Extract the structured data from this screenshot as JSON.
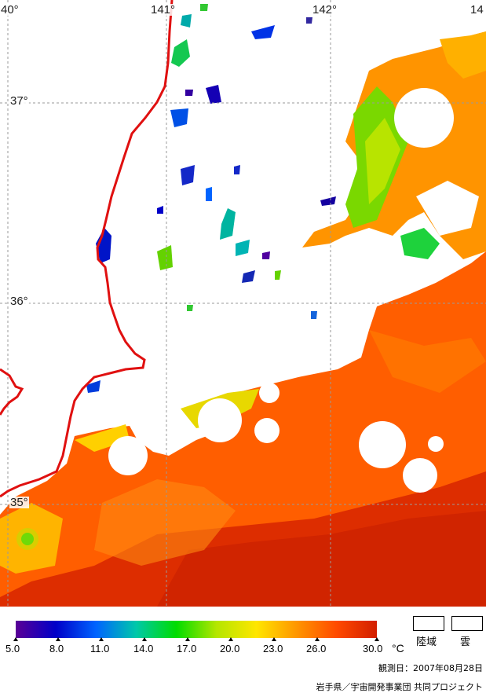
{
  "map": {
    "lon_labels": [
      "40°",
      "141°",
      "142°",
      "14"
    ],
    "lat_labels": [
      "37°",
      "36°",
      "35°"
    ]
  },
  "colorbar": {
    "ticks": [
      "5.0",
      "8.0",
      "11.0",
      "14.0",
      "17.0",
      "20.0",
      "23.0",
      "26.0",
      "30.0"
    ],
    "unit": "°C",
    "colors": [
      "#5a0096",
      "#0000c8",
      "#0064ff",
      "#00c8aa",
      "#00dc00",
      "#b4e600",
      "#ffe600",
      "#ff9600",
      "#ff4a00",
      "#d21e00"
    ]
  },
  "legend": {
    "land": "陸域",
    "cloud": "雲"
  },
  "observation_date": "観測日：2007年08月28日",
  "credit": "岩手県／宇宙開発事業団 共同プロジェクト"
}
